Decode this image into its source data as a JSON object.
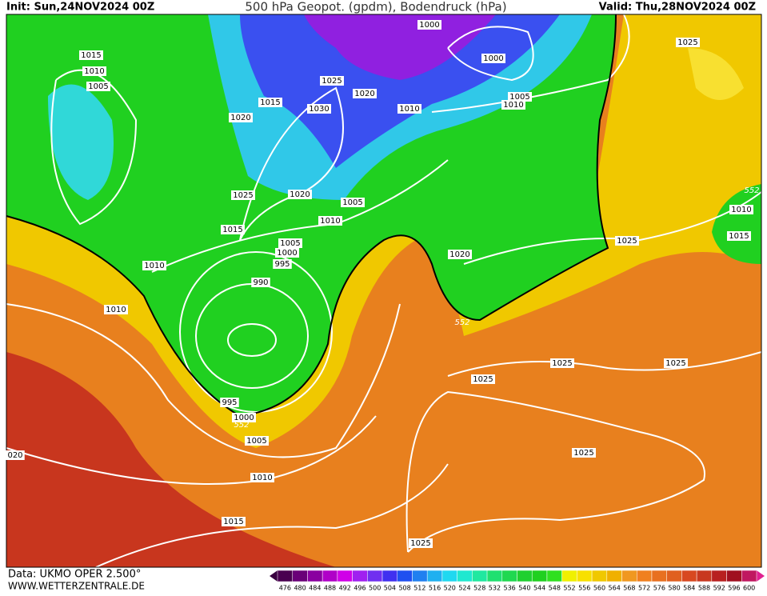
{
  "header": {
    "init": "Init: Sun,24NOV2024 00Z",
    "title": "500 hPa Geopot. (gpdm), Bodendruck (hPa)",
    "valid": "Valid: Thu,28NOV2024 00Z"
  },
  "isobar_labels": [
    "1000",
    "1000",
    "1005",
    "1010",
    "1015",
    "1010",
    "1005",
    "1025",
    "1020",
    "1015",
    "1030",
    "1010",
    "1020",
    "1025",
    "1020",
    "1005",
    "1010",
    "1015",
    "1005",
    "1000",
    "995",
    "1010",
    "990",
    "1010",
    "1020",
    "1025",
    "1025",
    "1010",
    "1015",
    "1025",
    "1025",
    "1025",
    "995",
    "1000",
    "1005",
    "1025",
    "020",
    "1010",
    "1015",
    "1025"
  ],
  "contour_labels": [
    "552",
    "552",
    "552"
  ],
  "footer": {
    "data": "Data: UKMO OPER 2.500°",
    "site": "WWW.WETTERZENTRALE.DE"
  },
  "colorbar": {
    "levels": [
      476,
      480,
      484,
      488,
      492,
      496,
      500,
      504,
      508,
      512,
      516,
      520,
      524,
      528,
      532,
      536,
      540,
      544,
      548,
      552,
      556,
      560,
      564,
      568,
      572,
      576,
      580,
      584,
      588,
      592,
      596,
      600
    ]
  }
}
